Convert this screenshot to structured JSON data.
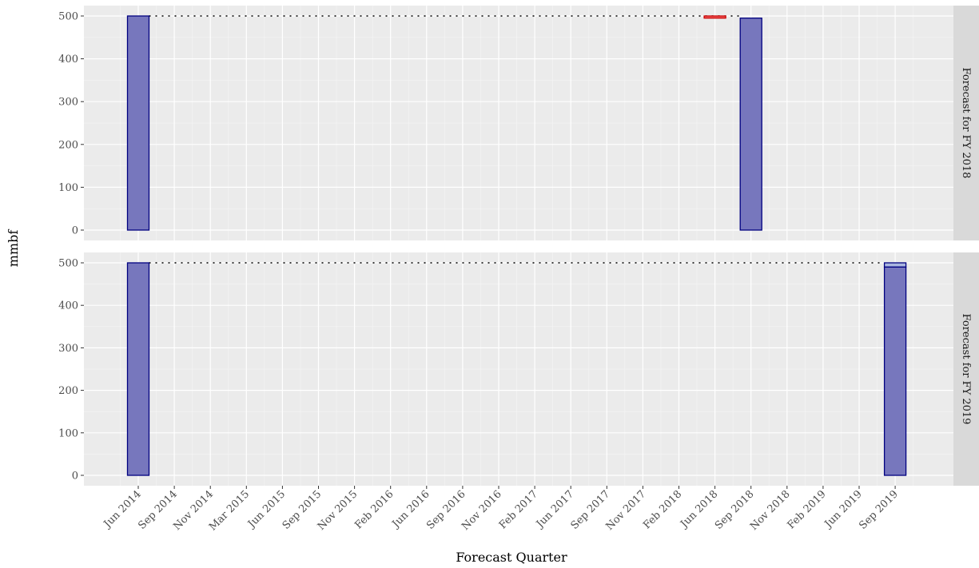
{
  "chart_data": {
    "type": "bar",
    "xlabel": "Forecast Quarter",
    "ylabel": "mmbf",
    "ylim": [
      0,
      500
    ],
    "y_ticks": [
      0,
      100,
      200,
      300,
      400,
      500
    ],
    "x_tick_labels": [
      "Jun 2014",
      "Sep 2014",
      "Nov 2014",
      "Mar 2015",
      "Jun 2015",
      "Sep 2015",
      "Nov 2015",
      "Feb 2016",
      "Jun 2016",
      "Sep 2016",
      "Nov 2016",
      "Feb 2017",
      "Jun 2017",
      "Sep 2017",
      "Nov 2017",
      "Feb 2018",
      "Jun 2018",
      "Sep 2018",
      "Nov 2018",
      "Feb 2019",
      "Jun 2019",
      "Sep 2019"
    ],
    "grid": true,
    "facets": [
      {
        "strip": "Forecast for FY 2018",
        "bars": [
          {
            "quarter": "Jun 2014",
            "start": 0,
            "end": 500,
            "kind": "total"
          },
          {
            "quarter": "Jun 2018",
            "start": 500,
            "end": 495,
            "kind": "decrease"
          },
          {
            "quarter": "Sep 2018",
            "start": 0,
            "end": 495,
            "kind": "total"
          }
        ],
        "connector": {
          "from": "Jun 2014",
          "to": "Sep 2018"
        }
      },
      {
        "strip": "Forecast for FY 2019",
        "bars": [
          {
            "quarter": "Jun 2014",
            "start": 0,
            "end": 500,
            "kind": "total"
          },
          {
            "quarter": "Sep 2019",
            "start": 500,
            "end": 490,
            "kind": "change-light"
          },
          {
            "quarter": "Sep 2019",
            "start": 0,
            "end": 490,
            "kind": "total"
          }
        ],
        "connector": {
          "from": "Jun 2014",
          "to": "Sep 2019"
        }
      }
    ]
  },
  "colors": {
    "panel_bg": "#ebebeb",
    "strip_bg": "#d9d9d9",
    "grid_major": "#ffffff",
    "grid_minor": "#f5f5f5",
    "total_fill": "#7777bd",
    "total_stroke": "#000080",
    "decrease_fill": "#f06060",
    "decrease_stroke": "#cc0000",
    "light_fill": "#aab6df",
    "connector": "#000000"
  }
}
